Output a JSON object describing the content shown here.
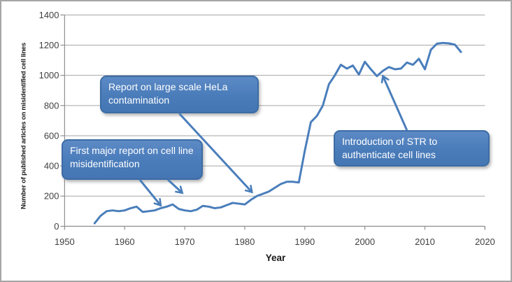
{
  "frame": {
    "background": "#ffffff",
    "border_color": "#a6a6a6"
  },
  "colors": {
    "line": "#4a7ebb",
    "grid": "#a6a6a6",
    "axis": "#8f8f8f",
    "tick_label": "#404040",
    "axis_title": "#1a1a1a",
    "callout_fill": "#4a7cba",
    "callout_border": "#3c6ca5",
    "callout_text": "#ffffff"
  },
  "chart_data": {
    "type": "line",
    "title": "",
    "xlabel": "Year",
    "ylabel": "Number of published articles on misidentified cell lines",
    "xlim": [
      1950,
      2020
    ],
    "ylim": [
      0,
      1400
    ],
    "x_ticks": [
      1950,
      1960,
      1970,
      1980,
      1990,
      2000,
      2010,
      2020
    ],
    "y_ticks": [
      0,
      200,
      400,
      600,
      800,
      1000,
      1200,
      1400
    ],
    "grid": "horizontal-only",
    "legend": "none",
    "line_color": "#4a7ebb",
    "line_width": 3,
    "series": [
      {
        "name": "Published articles on misidentified cell lines",
        "x": [
          1955,
          1956,
          1957,
          1958,
          1959,
          1960,
          1961,
          1962,
          1963,
          1964,
          1965,
          1966,
          1967,
          1968,
          1969,
          1970,
          1971,
          1972,
          1973,
          1974,
          1975,
          1976,
          1977,
          1978,
          1979,
          1980,
          1981,
          1982,
          1983,
          1984,
          1985,
          1986,
          1987,
          1988,
          1989,
          1990,
          1991,
          1992,
          1993,
          1994,
          1995,
          1996,
          1997,
          1998,
          1999,
          2000,
          2001,
          2002,
          2003,
          2004,
          2005,
          2006,
          2007,
          2008,
          2009,
          2010,
          2011,
          2012,
          2013,
          2014,
          2015,
          2016
        ],
        "y": [
          20,
          70,
          100,
          105,
          100,
          105,
          120,
          130,
          95,
          100,
          105,
          120,
          130,
          145,
          115,
          105,
          100,
          110,
          135,
          130,
          120,
          125,
          140,
          155,
          150,
          145,
          175,
          200,
          215,
          230,
          255,
          280,
          295,
          295,
          290,
          500,
          690,
          730,
          800,
          940,
          1000,
          1070,
          1045,
          1065,
          1005,
          1090,
          1040,
          995,
          1030,
          1055,
          1040,
          1045,
          1085,
          1070,
          1110,
          1040,
          1170,
          1210,
          1215,
          1212,
          1203,
          1155
        ]
      }
    ],
    "annotations": [
      {
        "id": "first-report",
        "text": "First major report on cell line misidentification",
        "arrows": [
          {
            "from": [
              1962.5,
              309
            ],
            "to": [
              1966.0,
              138
            ]
          },
          {
            "from": [
              1967.2,
              309
            ],
            "to": [
              1969.6,
              221
            ]
          }
        ]
      },
      {
        "id": "hela-contamination",
        "text": "Report on large scale HeLa contamination",
        "arrows": [
          {
            "from": [
              1969.1,
              747
            ],
            "to": [
              1981.2,
              226
            ]
          }
        ]
      },
      {
        "id": "str-introduction",
        "text": "Introduction of STR to authenticate cell lines",
        "arrows": [
          {
            "from": [
              2007.0,
              637
            ],
            "to": [
              2003.0,
              996
            ]
          }
        ]
      }
    ]
  }
}
